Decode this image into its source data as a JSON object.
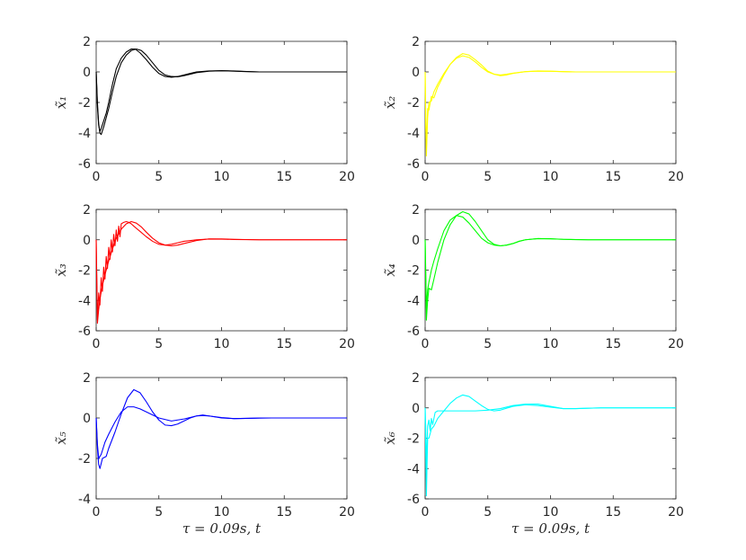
{
  "chart_data": [
    {
      "type": "line",
      "ylabel": "x̃₁",
      "xlabel": "",
      "xlim": [
        0,
        20
      ],
      "ylim": [
        -6,
        2
      ],
      "xticks": [
        "0",
        "5",
        "10",
        "15",
        "20"
      ],
      "yticks": [
        "-6",
        "-4",
        "-2",
        "0",
        "2"
      ],
      "color": "#000000",
      "series": [
        {
          "x": [
            0,
            0.1,
            0.2,
            0.3,
            0.4,
            0.6,
            0.8,
            1.0,
            1.3,
            1.6,
            2.0,
            2.4,
            2.8,
            3.1,
            3.5,
            4.0,
            4.5,
            5.0,
            5.5,
            6.0,
            6.5,
            7.0,
            7.5,
            8.0,
            9.0,
            10.0,
            11.0,
            12.0,
            13.0,
            15.0,
            20.0
          ],
          "y": [
            0,
            -2.3,
            -3.5,
            -3.9,
            -3.7,
            -3.2,
            -2.7,
            -2.0,
            -0.8,
            0.2,
            0.9,
            1.3,
            1.5,
            1.5,
            1.25,
            0.8,
            0.3,
            -0.1,
            -0.3,
            -0.35,
            -0.3,
            -0.2,
            -0.1,
            0.0,
            0.06,
            0.08,
            0.05,
            0.02,
            0.0,
            0.0,
            0.0
          ]
        },
        {
          "x": [
            0,
            0.1,
            0.2,
            0.3,
            0.4,
            0.6,
            0.8,
            1.0,
            1.3,
            1.6,
            2.0,
            2.4,
            2.8,
            3.2,
            3.6,
            4.0,
            4.5,
            5.0,
            5.5,
            6.0,
            6.5,
            7.0,
            7.5,
            8.0,
            9.0,
            10.0,
            11.0,
            12.0,
            13.0,
            15.0,
            20.0
          ],
          "y": [
            0,
            -2.0,
            -3.4,
            -4.0,
            -4.1,
            -3.6,
            -3.0,
            -2.4,
            -1.3,
            -0.3,
            0.6,
            1.1,
            1.4,
            1.5,
            1.4,
            1.1,
            0.6,
            0.1,
            -0.2,
            -0.3,
            -0.32,
            -0.25,
            -0.15,
            -0.05,
            0.05,
            0.08,
            0.06,
            0.03,
            0.0,
            0.0,
            0.0
          ]
        }
      ]
    },
    {
      "type": "line",
      "ylabel": "x̃₂",
      "xlabel": "",
      "xlim": [
        0,
        20
      ],
      "ylim": [
        -6,
        2
      ],
      "xticks": [
        "0",
        "5",
        "10",
        "15",
        "20"
      ],
      "yticks": [
        "-6",
        "-4",
        "-2",
        "0",
        "2"
      ],
      "color": "#ffff00",
      "series": [
        {
          "x": [
            0,
            0.05,
            0.1,
            0.2,
            0.3,
            0.5,
            0.7,
            1.0,
            1.5,
            2.0,
            2.5,
            3.0,
            3.5,
            4.0,
            4.5,
            5.0,
            5.5,
            6.0,
            6.5,
            7.0,
            8.0,
            9.0,
            10.0,
            11.0,
            12.0,
            14.0,
            20.0
          ],
          "y": [
            0,
            -3.5,
            -5.5,
            -3.0,
            -2.0,
            -1.9,
            -1.3,
            -0.8,
            -0.1,
            0.5,
            0.9,
            1.05,
            0.95,
            0.65,
            0.3,
            0.0,
            -0.15,
            -0.2,
            -0.15,
            -0.08,
            0.02,
            0.05,
            0.04,
            0.02,
            0.0,
            0.0,
            0.0
          ]
        },
        {
          "x": [
            0,
            0.05,
            0.1,
            0.2,
            0.3,
            0.5,
            0.7,
            1.0,
            1.5,
            2.0,
            2.5,
            3.0,
            3.5,
            4.0,
            4.5,
            5.0,
            5.5,
            6.0,
            6.5,
            7.0,
            8.0,
            9.0,
            10.0,
            11.0,
            12.0,
            14.0,
            20.0
          ],
          "y": [
            0,
            -3.0,
            -5.0,
            -2.4,
            -2.5,
            -1.6,
            -1.7,
            -1.0,
            -0.2,
            0.5,
            0.95,
            1.2,
            1.1,
            0.8,
            0.45,
            0.05,
            -0.15,
            -0.25,
            -0.2,
            -0.1,
            0.02,
            0.06,
            0.05,
            0.02,
            0.0,
            0.0,
            0.0
          ]
        }
      ]
    },
    {
      "type": "line",
      "ylabel": "x̃₃",
      "xlabel": "",
      "xlim": [
        0,
        20
      ],
      "ylim": [
        -6,
        2
      ],
      "xticks": [
        "0",
        "5",
        "10",
        "15",
        "20"
      ],
      "yticks": [
        "-6",
        "-4",
        "-2",
        "0",
        "2"
      ],
      "color": "#ff0000",
      "series": [
        {
          "x": [
            0,
            0.1,
            0.2,
            0.3,
            0.4,
            0.5,
            0.6,
            0.7,
            0.8,
            0.9,
            1.0,
            1.1,
            1.2,
            1.3,
            1.4,
            1.5,
            1.6,
            1.7,
            1.8,
            1.9,
            2.0,
            2.2,
            2.4,
            2.6,
            2.8,
            3.0,
            3.5,
            4.0,
            4.5,
            5.0,
            5.5,
            6.0,
            6.5,
            7.0,
            8.0,
            9.0,
            10.0,
            11.0,
            13.0,
            20.0
          ],
          "y": [
            0,
            -5.3,
            -3.5,
            -4.3,
            -2.5,
            -3.4,
            -1.8,
            -2.6,
            -1.1,
            -1.9,
            -0.5,
            -1.3,
            0.0,
            -0.8,
            0.35,
            -0.4,
            0.65,
            -0.1,
            0.9,
            0.2,
            1.05,
            1.15,
            1.2,
            1.15,
            1.05,
            0.9,
            0.55,
            0.2,
            -0.1,
            -0.3,
            -0.35,
            -0.3,
            -0.2,
            -0.1,
            0.0,
            0.05,
            0.04,
            0.02,
            0.0,
            0.0
          ]
        },
        {
          "x": [
            0,
            0.1,
            0.2,
            0.3,
            0.5,
            0.7,
            1.0,
            1.3,
            1.6,
            2.0,
            2.4,
            2.8,
            3.2,
            3.6,
            4.0,
            4.5,
            5.0,
            5.5,
            6.0,
            6.5,
            7.0,
            8.0,
            9.0,
            10.0,
            11.0,
            13.0,
            20.0
          ],
          "y": [
            0,
            -5.5,
            -4.6,
            -3.9,
            -3.0,
            -2.3,
            -1.4,
            -0.6,
            0.1,
            0.7,
            1.05,
            1.2,
            1.1,
            0.85,
            0.5,
            0.1,
            -0.2,
            -0.35,
            -0.4,
            -0.35,
            -0.25,
            -0.05,
            0.06,
            0.06,
            0.03,
            0.0,
            0.0
          ]
        }
      ]
    },
    {
      "type": "line",
      "ylabel": "x̃₄",
      "xlabel": "",
      "xlim": [
        0,
        20
      ],
      "ylim": [
        -6,
        2
      ],
      "xticks": [
        "0",
        "5",
        "10",
        "15",
        "20"
      ],
      "yticks": [
        "-6",
        "-4",
        "-2",
        "0",
        "2"
      ],
      "color": "#00ff00",
      "series": [
        {
          "x": [
            0,
            0.1,
            0.2,
            0.3,
            0.5,
            0.7,
            1.0,
            1.5,
            2.0,
            2.5,
            3.0,
            3.5,
            4.0,
            4.5,
            5.0,
            5.5,
            6.0,
            6.5,
            7.0,
            7.5,
            8.0,
            9.0,
            10.0,
            11.0,
            13.0,
            20.0
          ],
          "y": [
            0,
            -5.3,
            -4.0,
            -3.2,
            -3.3,
            -2.6,
            -1.5,
            0.0,
            1.0,
            1.6,
            1.85,
            1.7,
            1.2,
            0.6,
            0.0,
            -0.3,
            -0.4,
            -0.35,
            -0.25,
            -0.1,
            0.0,
            0.08,
            0.06,
            0.03,
            0.0,
            0.0
          ]
        },
        {
          "x": [
            0,
            0.1,
            0.2,
            0.3,
            0.5,
            0.7,
            1.0,
            1.5,
            2.0,
            2.5,
            3.0,
            3.5,
            4.0,
            4.5,
            5.0,
            5.5,
            6.0,
            6.5,
            7.0,
            7.5,
            8.0,
            9.0,
            10.0,
            11.0,
            13.0,
            20.0
          ],
          "y": [
            0,
            -4.5,
            -3.3,
            -2.8,
            -2.0,
            -1.4,
            -0.6,
            0.6,
            1.3,
            1.6,
            1.5,
            1.1,
            0.6,
            0.1,
            -0.2,
            -0.35,
            -0.4,
            -0.35,
            -0.25,
            -0.1,
            0.0,
            0.08,
            0.07,
            0.03,
            0.0,
            0.0
          ]
        }
      ]
    },
    {
      "type": "line",
      "ylabel": "x̃₅",
      "xlabel": "τ = 0.09s, t",
      "xlim": [
        0,
        20
      ],
      "ylim": [
        -4,
        2
      ],
      "xticks": [
        "0",
        "5",
        "10",
        "15",
        "20"
      ],
      "yticks": [
        "-4",
        "-2",
        "0",
        "2"
      ],
      "color": "#0000ff",
      "series": [
        {
          "x": [
            0,
            0.1,
            0.2,
            0.3,
            0.5,
            0.8,
            1.0,
            1.5,
            2.0,
            2.5,
            3.0,
            3.5,
            4.0,
            4.5,
            5.0,
            5.5,
            6.0,
            6.5,
            7.0,
            7.5,
            8.0,
            8.5,
            9.0,
            10.0,
            11.0,
            12.0,
            13.0,
            15.0,
            20.0
          ],
          "y": [
            0,
            -1.5,
            -2.3,
            -2.5,
            -2.0,
            -1.9,
            -1.5,
            -0.7,
            0.2,
            1.0,
            1.4,
            1.25,
            0.8,
            0.3,
            -0.1,
            -0.35,
            -0.38,
            -0.3,
            -0.15,
            0.0,
            0.1,
            0.12,
            0.1,
            0.02,
            -0.03,
            -0.02,
            0.0,
            0.0,
            0.0
          ]
        },
        {
          "x": [
            0,
            0.1,
            0.2,
            0.4,
            0.7,
            1.0,
            1.5,
            2.0,
            2.5,
            3.0,
            3.5,
            4.0,
            5.0,
            6.0,
            7.0,
            8.0,
            8.5,
            9.0,
            10.0,
            11.0,
            12.0,
            14.0,
            20.0
          ],
          "y": [
            0,
            -1.3,
            -2.0,
            -1.8,
            -1.2,
            -0.8,
            -0.2,
            0.3,
            0.55,
            0.55,
            0.45,
            0.3,
            0.0,
            -0.15,
            -0.05,
            0.1,
            0.15,
            0.1,
            0.0,
            -0.03,
            -0.02,
            0.0,
            0.0
          ]
        }
      ]
    },
    {
      "type": "line",
      "ylabel": "x̃₆",
      "xlabel": "τ = 0.09s, t",
      "xlim": [
        0,
        20
      ],
      "ylim": [
        -6,
        2
      ],
      "xticks": [
        "0",
        "5",
        "10",
        "15",
        "20"
      ],
      "yticks": [
        "-6",
        "-4",
        "-2",
        "0",
        "2"
      ],
      "color": "#00ffff",
      "series": [
        {
          "x": [
            0,
            0.05,
            0.1,
            0.2,
            0.3,
            0.5,
            0.7,
            1.0,
            1.5,
            2.0,
            2.5,
            3.0,
            3.5,
            4.0,
            4.5,
            5.0,
            5.5,
            6.0,
            7.0,
            8.0,
            9.0,
            10.0,
            11.0,
            12.0,
            14.0,
            20.0
          ],
          "y": [
            0,
            -3.0,
            -5.8,
            -2.0,
            -2.0,
            -1.4,
            -1.2,
            -0.7,
            -0.2,
            0.3,
            0.65,
            0.85,
            0.75,
            0.45,
            0.15,
            -0.1,
            -0.2,
            -0.15,
            0.1,
            0.2,
            0.15,
            0.05,
            -0.05,
            -0.05,
            0.0,
            0.0
          ]
        },
        {
          "x": [
            0,
            0.05,
            0.1,
            0.2,
            0.3,
            0.4,
            0.5,
            0.6,
            0.8,
            1.0,
            2.0,
            3.0,
            4.0,
            5.0,
            6.0,
            7.0,
            8.0,
            9.0,
            10.0,
            11.0,
            12.0,
            14.0,
            20.0
          ],
          "y": [
            0,
            -1.5,
            -4.0,
            -1.2,
            -0.8,
            -1.5,
            -0.7,
            -1.1,
            -0.3,
            -0.2,
            -0.2,
            -0.2,
            -0.2,
            -0.15,
            -0.05,
            0.15,
            0.25,
            0.25,
            0.1,
            -0.05,
            -0.05,
            0.0,
            0.0
          ]
        }
      ]
    }
  ]
}
